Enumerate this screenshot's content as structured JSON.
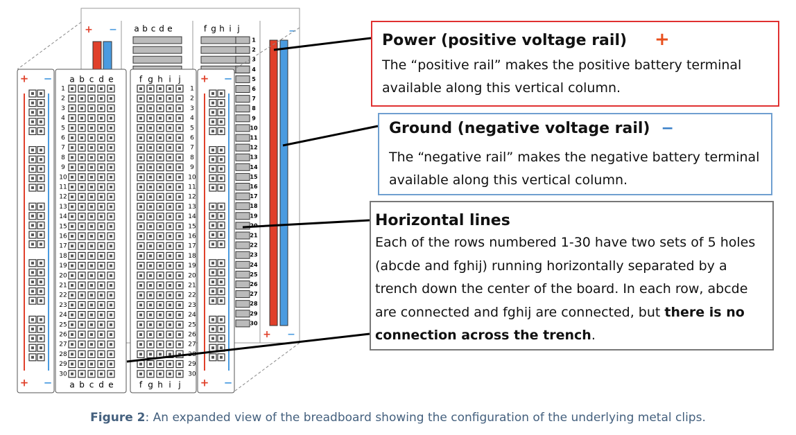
{
  "breadboard": {
    "column_labels_left": [
      "a",
      "b",
      "c",
      "d",
      "e"
    ],
    "column_labels_right": [
      "f",
      "g",
      "h",
      "i",
      "j"
    ],
    "row_numbers": [
      "1",
      "2",
      "3",
      "4",
      "5",
      "6",
      "7",
      "8",
      "9",
      "10",
      "11",
      "12",
      "13",
      "14",
      "15",
      "16",
      "17",
      "18",
      "19",
      "20",
      "21",
      "22",
      "23",
      "24",
      "25",
      "26",
      "27",
      "28",
      "29",
      "30"
    ],
    "plus": "+",
    "minus": "−"
  },
  "callouts": [
    {
      "title": "Power (positive voltage rail)",
      "symbol": "+",
      "body": "The “positive rail” makes the positive battery terminal available along this vertical column."
    },
    {
      "title": "Ground (negative voltage rail)",
      "symbol": "−",
      "body": "The “negative rail” makes the negative battery terminal available along this vertical column."
    },
    {
      "title": "Horizontal lines",
      "body": "Each of the rows numbered 1-30 have two sets of 5 holes (abcde and fghij) running horizontally separated by a trench down the center of the board. In each row, abcde are connected and fghij are connected, but ",
      "body_bold": "there is no connection across the trench",
      "body_end": "."
    }
  ],
  "caption": {
    "label": "Figure 2",
    "text": ": An expanded view of the breadboard showing the configuration of the underlying metal clips."
  }
}
